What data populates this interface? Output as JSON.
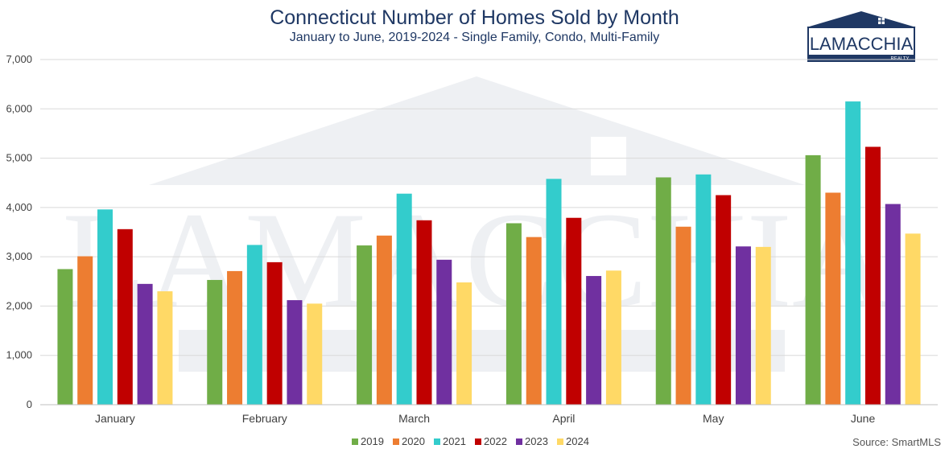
{
  "logo": {
    "name": "LAMACCHIA",
    "sub": "REALTY",
    "color": "#1f3864"
  },
  "watermark": {
    "color": "#eef0f3"
  },
  "source": "Source: SmartMLS",
  "chart_data": {
    "type": "bar",
    "title": "Connecticut Number of Homes Sold by Month",
    "subtitle": "January to June, 2019-2024 - Single Family, Condo, Multi-Family",
    "xlabel": "",
    "ylabel": "",
    "ylim": [
      0,
      7000
    ],
    "yticks": [
      0,
      1000,
      2000,
      3000,
      4000,
      5000,
      6000,
      7000
    ],
    "ytick_labels": [
      "0",
      "1,000",
      "2,000",
      "3,000",
      "4,000",
      "5,000",
      "6,000",
      "7,000"
    ],
    "grid": true,
    "legend_position": "bottom",
    "categories": [
      "January",
      "February",
      "March",
      "April",
      "May",
      "June"
    ],
    "series": [
      {
        "name": "2019",
        "color": "#70ad47",
        "values": [
          2750,
          2530,
          3230,
          3680,
          4610,
          5060
        ]
      },
      {
        "name": "2020",
        "color": "#ed7d31",
        "values": [
          3010,
          2710,
          3430,
          3400,
          3610,
          4300
        ]
      },
      {
        "name": "2021",
        "color": "#33cccc",
        "values": [
          3960,
          3240,
          4280,
          4580,
          4670,
          6150
        ]
      },
      {
        "name": "2022",
        "color": "#c00000",
        "values": [
          3560,
          2890,
          3740,
          3790,
          4250,
          5230
        ]
      },
      {
        "name": "2023",
        "color": "#7030a0",
        "values": [
          2450,
          2120,
          2940,
          2610,
          3210,
          4070
        ]
      },
      {
        "name": "2024",
        "color": "#ffd966",
        "values": [
          2300,
          2050,
          2480,
          2720,
          3200,
          3470
        ]
      }
    ]
  }
}
